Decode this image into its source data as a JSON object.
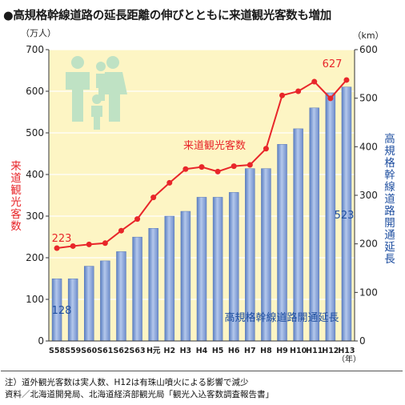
{
  "title": "●高規格幹線道路の延長距離の伸びとともに来道観光客数も増加",
  "chart_data": {
    "type": "bar+line",
    "categories": [
      "S58",
      "S59",
      "S60",
      "S61",
      "S62",
      "S63",
      "H元",
      "H2",
      "H3",
      "H4",
      "H5",
      "H6",
      "H7",
      "H8",
      "H9",
      "H10",
      "H11",
      "H12",
      "H13"
    ],
    "x_unit": "（年）",
    "left_axis": {
      "unit": "（万人）",
      "label": "来道観光客数",
      "ylim": [
        0,
        700
      ],
      "ticks": [
        "0",
        "100",
        "200",
        "300",
        "400",
        "500",
        "600",
        "700"
      ],
      "color": "#e8262a"
    },
    "right_axis": {
      "unit": "（km）",
      "label": "高規格幹線道路開通延長",
      "ylim": [
        0,
        600
      ],
      "ticks": [
        "0",
        "100",
        "200",
        "300",
        "400",
        "500",
        "600"
      ],
      "color": "#1f4fa0"
    },
    "series": [
      {
        "name": "来道観光客数",
        "type": "line",
        "axis": "left",
        "color": "#e8262a",
        "values": [
          223,
          228,
          232,
          235,
          265,
          293,
          345,
          380,
          413,
          418,
          407,
          420,
          423,
          462,
          590,
          600,
          623,
          583,
          627
        ]
      },
      {
        "name": "高規格幹線道路開通延長",
        "type": "bar",
        "axis": "right",
        "color": "#8eaad9",
        "values": [
          128,
          128,
          154,
          165,
          184,
          214,
          232,
          257,
          267,
          296,
          296,
          306,
          355,
          355,
          405,
          437,
          480,
          511,
          523
        ]
      }
    ],
    "data_labels": {
      "line_first": "223",
      "line_last": "627",
      "bar_first": "128",
      "bar_last": "523"
    },
    "grid": true
  },
  "notes": [
    "注）道外観光客数は実人数、H12は有珠山噴火による影響で減少",
    "資料／北海道開発局、北海道経済部観光局「観光入込客数調査報告書」"
  ]
}
